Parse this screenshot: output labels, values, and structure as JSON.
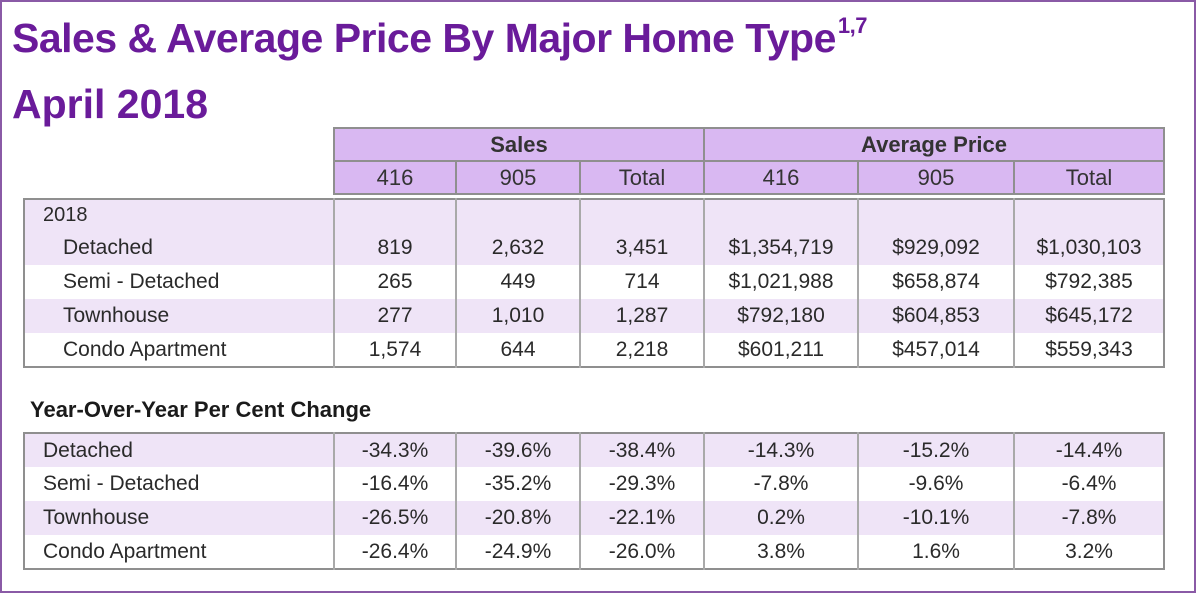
{
  "title": "Sales & Average Price By Major Home Type",
  "title_sup": "1,7",
  "subtitle": "April 2018",
  "header": {
    "groups": [
      "Sales",
      "Average Price"
    ],
    "columns": [
      "416",
      "905",
      "Total",
      "416",
      "905",
      "Total"
    ]
  },
  "year_label": "2018",
  "current": [
    {
      "type": "Detached",
      "values": [
        "819",
        "2,632",
        "3,451",
        "$1,354,719",
        "$929,092",
        "$1,030,103"
      ]
    },
    {
      "type": "Semi - Detached",
      "values": [
        "265",
        "449",
        "714",
        "$1,021,988",
        "$658,874",
        "$792,385"
      ]
    },
    {
      "type": "Townhouse",
      "values": [
        "277",
        "1,010",
        "1,287",
        "$792,180",
        "$604,853",
        "$645,172"
      ]
    },
    {
      "type": "Condo Apartment",
      "values": [
        "1,574",
        "644",
        "2,218",
        "$601,211",
        "$457,014",
        "$559,343"
      ]
    }
  ],
  "yoy_title": "Year-Over-Year Per Cent Change",
  "yoy": [
    {
      "type": "Detached",
      "values": [
        "-34.3%",
        "-39.6%",
        "-38.4%",
        "-14.3%",
        "-15.2%",
        "-14.4%"
      ]
    },
    {
      "type": "Semi - Detached",
      "values": [
        "-16.4%",
        "-35.2%",
        "-29.3%",
        "-7.8%",
        "-9.6%",
        "-6.4%"
      ]
    },
    {
      "type": "Townhouse",
      "values": [
        "-26.5%",
        "-20.8%",
        "-22.1%",
        "0.2%",
        "-10.1%",
        "-7.8%"
      ]
    },
    {
      "type": "Condo Apartment",
      "values": [
        "-26.4%",
        "-24.9%",
        "-26.0%",
        "3.8%",
        "1.6%",
        "3.2%"
      ]
    }
  ],
  "colors": {
    "title": "#6a1b9a",
    "header_fill": "#d9b8f2",
    "row_alt_fill": "#efe4f7",
    "border": "#8f8f8f"
  }
}
